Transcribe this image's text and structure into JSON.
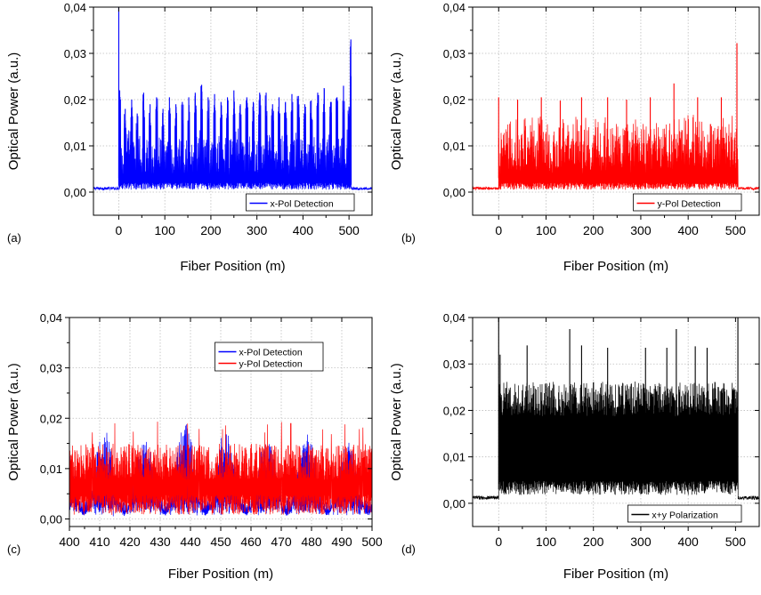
{
  "chart_data": [
    {
      "type": "line",
      "panel_label": "(a)",
      "xlabel": "Fiber Position (m)",
      "ylabel": "Optical Power (a.u.)",
      "xlim": [
        -55,
        550
      ],
      "ylim": [
        -0.005,
        0.04
      ],
      "x_ticks": [
        0,
        100,
        200,
        300,
        400,
        500
      ],
      "x_tick_labels": [
        "0",
        "100",
        "200",
        "300",
        "400",
        "500"
      ],
      "y_ticks": [
        0.0,
        0.01,
        0.02,
        0.03,
        0.04
      ],
      "y_tick_labels": [
        "0,00",
        "0,01",
        "0,02",
        "0,03",
        "0,04"
      ],
      "grid": true,
      "legend_position": "bottom-right",
      "series": [
        {
          "name": "x-Pol Detection",
          "color": "#0000ff",
          "baseline_outside": 0.0008,
          "signal_start": 0,
          "signal_end": 505,
          "noise_floor": 0.0005,
          "typical_level": 0.011,
          "bursts": [
            {
              "x": 0,
              "peak": 0.04
            },
            {
              "x": 2,
              "peak": 0.022
            },
            {
              "x": 14,
              "peak": 0.018
            },
            {
              "x": 28,
              "peak": 0.02
            },
            {
              "x": 40,
              "peak": 0.017
            },
            {
              "x": 54,
              "peak": 0.0215
            },
            {
              "x": 68,
              "peak": 0.019
            },
            {
              "x": 82,
              "peak": 0.0205
            },
            {
              "x": 96,
              "peak": 0.018
            },
            {
              "x": 110,
              "peak": 0.0205
            },
            {
              "x": 124,
              "peak": 0.019
            },
            {
              "x": 138,
              "peak": 0.0195
            },
            {
              "x": 152,
              "peak": 0.0205
            },
            {
              "x": 166,
              "peak": 0.0215
            },
            {
              "x": 180,
              "peak": 0.0232
            },
            {
              "x": 194,
              "peak": 0.0205
            },
            {
              "x": 208,
              "peak": 0.0212
            },
            {
              "x": 222,
              "peak": 0.0195
            },
            {
              "x": 236,
              "peak": 0.0205
            },
            {
              "x": 250,
              "peak": 0.022
            },
            {
              "x": 264,
              "peak": 0.019
            },
            {
              "x": 278,
              "peak": 0.0205
            },
            {
              "x": 292,
              "peak": 0.0195
            },
            {
              "x": 306,
              "peak": 0.0215
            },
            {
              "x": 320,
              "peak": 0.0215
            },
            {
              "x": 334,
              "peak": 0.019
            },
            {
              "x": 348,
              "peak": 0.0205
            },
            {
              "x": 362,
              "peak": 0.0195
            },
            {
              "x": 376,
              "peak": 0.0212
            },
            {
              "x": 390,
              "peak": 0.0208
            },
            {
              "x": 404,
              "peak": 0.019
            },
            {
              "x": 418,
              "peak": 0.0198
            },
            {
              "x": 432,
              "peak": 0.0215
            },
            {
              "x": 446,
              "peak": 0.0225
            },
            {
              "x": 460,
              "peak": 0.0195
            },
            {
              "x": 474,
              "peak": 0.0205
            },
            {
              "x": 488,
              "peak": 0.023
            },
            {
              "x": 500,
              "peak": 0.0185
            },
            {
              "x": 504,
              "peak": 0.033
            }
          ]
        }
      ]
    },
    {
      "type": "line",
      "panel_label": "(b)",
      "xlabel": "Fiber Position (m)",
      "ylabel": "Optical Power (a.u.)",
      "xlim": [
        -55,
        550
      ],
      "ylim": [
        -0.005,
        0.04
      ],
      "x_ticks": [
        0,
        100,
        200,
        300,
        400,
        500
      ],
      "x_tick_labels": [
        "0",
        "100",
        "200",
        "300",
        "400",
        "500"
      ],
      "y_ticks": [
        0.0,
        0.01,
        0.02,
        0.03,
        0.04
      ],
      "y_tick_labels": [
        "0,00",
        "0,01",
        "0,02",
        "0,03",
        "0,04"
      ],
      "grid": true,
      "legend_position": "bottom-right",
      "series": [
        {
          "name": "y-Pol Detection",
          "color": "#ff0000",
          "baseline_outside": 0.0008,
          "signal_start": 0,
          "signal_end": 505,
          "noise_floor": 0.0005,
          "typical_level": 0.0135,
          "peaks": [
            {
              "x": 0,
              "peak": 0.0205
            },
            {
              "x": 40,
              "peak": 0.02
            },
            {
              "x": 90,
              "peak": 0.0205
            },
            {
              "x": 130,
              "peak": 0.0198
            },
            {
              "x": 175,
              "peak": 0.0205
            },
            {
              "x": 230,
              "peak": 0.0205
            },
            {
              "x": 270,
              "peak": 0.02
            },
            {
              "x": 320,
              "peak": 0.0205
            },
            {
              "x": 370,
              "peak": 0.0235
            },
            {
              "x": 420,
              "peak": 0.0205
            },
            {
              "x": 470,
              "peak": 0.0205
            },
            {
              "x": 503,
              "peak": 0.0322
            }
          ]
        }
      ]
    },
    {
      "type": "line",
      "panel_label": "(c)",
      "xlabel": "Fiber Position (m)",
      "ylabel": "Optical Power (a.u.)",
      "xlim": [
        400,
        500
      ],
      "ylim": [
        -0.0015,
        0.04
      ],
      "x_ticks": [
        400,
        410,
        420,
        430,
        440,
        450,
        460,
        470,
        480,
        490,
        500
      ],
      "x_tick_labels": [
        "400",
        "410",
        "420",
        "430",
        "440",
        "450",
        "460",
        "470",
        "480",
        "490",
        "500"
      ],
      "y_ticks": [
        0.0,
        0.01,
        0.02,
        0.03,
        0.04
      ],
      "y_tick_labels": [
        "0,00",
        "0,01",
        "0,02",
        "0,03",
        "0,04"
      ],
      "grid": true,
      "legend_position": "top-right",
      "series": [
        {
          "name": "x-Pol Detection",
          "color": "#0000ff",
          "period_m": 13.4,
          "first_peak_x": 411.5,
          "peak_level": 0.0195,
          "valley_level": 0.0012,
          "peaks": [
            {
              "x": 411.5,
              "peak": 0.0213
            },
            {
              "x": 425,
              "peak": 0.019
            },
            {
              "x": 438.5,
              "peak": 0.0235
            },
            {
              "x": 452,
              "peak": 0.0215
            },
            {
              "x": 465.5,
              "peak": 0.019
            },
            {
              "x": 479,
              "peak": 0.02
            },
            {
              "x": 492.5,
              "peak": 0.018
            }
          ]
        },
        {
          "name": "y-Pol Detection",
          "color": "#ff0000",
          "typical_level": 0.013,
          "max_level": 0.0195,
          "min_level": 0.0008
        }
      ]
    },
    {
      "type": "line",
      "panel_label": "(d)",
      "xlabel": "Fiber Position (m)",
      "ylabel": "Optical Power (a.u.)",
      "xlim": [
        -55,
        550
      ],
      "ylim": [
        -0.005,
        0.04
      ],
      "x_ticks": [
        0,
        100,
        200,
        300,
        400,
        500
      ],
      "x_tick_labels": [
        "0",
        "100",
        "200",
        "300",
        "400",
        "500"
      ],
      "y_ticks": [
        0.0,
        0.01,
        0.02,
        0.03,
        0.04
      ],
      "y_tick_labels": [
        "0,00",
        "0,01",
        "0,02",
        "0,03",
        "0,04"
      ],
      "grid": true,
      "legend_position": "bottom-right",
      "series": [
        {
          "name": "x+y Polarization",
          "color": "#000000",
          "baseline_outside": 0.0012,
          "signal_start": 0,
          "signal_end": 505,
          "band_low": 0.0018,
          "band_high": 0.025,
          "peaks": [
            {
              "x": 0,
              "peak": 0.04
            },
            {
              "x": 3,
              "peak": 0.032
            },
            {
              "x": 60,
              "peak": 0.034
            },
            {
              "x": 150,
              "peak": 0.0375
            },
            {
              "x": 175,
              "peak": 0.034
            },
            {
              "x": 230,
              "peak": 0.0335
            },
            {
              "x": 310,
              "peak": 0.0335
            },
            {
              "x": 355,
              "peak": 0.0335
            },
            {
              "x": 375,
              "peak": 0.0375
            },
            {
              "x": 415,
              "peak": 0.0338
            },
            {
              "x": 440,
              "peak": 0.0335
            },
            {
              "x": 505,
              "peak": 0.04
            }
          ]
        }
      ]
    }
  ]
}
